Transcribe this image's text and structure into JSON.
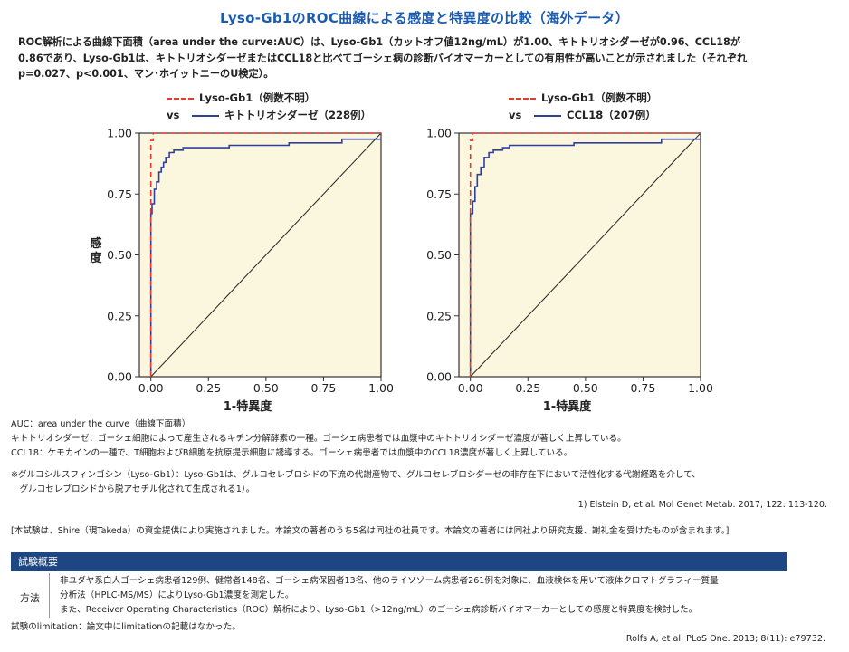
{
  "title": "Lyso-Gb1のROC曲線による感度と特異度の比較（海外データ）",
  "intro_lines": [
    "ROC解析による曲線下面積（area under the curve:AUC）は、Lyso-Gb1（カットオフ値12ng/mL）が1.00、キトトリオシダーゼが0.96、CCL18が",
    "0.86であり、Lyso-Gb1は、キトトリオシダーゼまたはCCL18と比べてゴーシェ病の診断バイオマーカーとしての有用性が高いことが示されました（それぞれ",
    "p=0.027、p<0.001、マン･ホイットニーのU検定）。"
  ],
  "ylabel_chars": [
    "感",
    "度"
  ],
  "xlabel": "1-特異度",
  "vs_label": "vs",
  "chart_data": [
    {
      "type": "line",
      "series": [
        {
          "name": "Lyso-Gb1（例数不明）",
          "color": "#e23b32",
          "style": "dashed",
          "x": [
            0.0,
            0.0,
            0.01,
            0.01,
            1.0
          ],
          "y": [
            0.0,
            0.97,
            0.97,
            1.0,
            1.0
          ]
        },
        {
          "name": "キトトリオシダーゼ（228例）",
          "color": "#2f3fa0",
          "style": "solid",
          "x": [
            0.0,
            0.0,
            0.005,
            0.005,
            0.015,
            0.015,
            0.025,
            0.025,
            0.035,
            0.035,
            0.045,
            0.045,
            0.055,
            0.055,
            0.065,
            0.065,
            0.08,
            0.08,
            0.1,
            0.1,
            0.14,
            0.14,
            0.34,
            0.34,
            0.6,
            0.6,
            0.83,
            0.83,
            1.0
          ],
          "y": [
            0.0,
            0.67,
            0.67,
            0.71,
            0.71,
            0.77,
            0.77,
            0.8,
            0.8,
            0.84,
            0.84,
            0.86,
            0.86,
            0.88,
            0.88,
            0.9,
            0.9,
            0.92,
            0.92,
            0.93,
            0.93,
            0.94,
            0.94,
            0.95,
            0.95,
            0.96,
            0.96,
            0.975,
            0.975
          ]
        }
      ],
      "diagonal": true,
      "xticks": [
        "0.00",
        "0.25",
        "0.50",
        "0.75",
        "1.00"
      ],
      "yticks": [
        "0.00",
        "0.25",
        "0.50",
        "0.75",
        "1.00"
      ],
      "xlim": [
        -0.05,
        1.0
      ],
      "ylim": [
        0,
        1.0
      ]
    },
    {
      "type": "line",
      "series": [
        {
          "name": "Lyso-Gb1（例数不明）",
          "color": "#e23b32",
          "style": "dashed",
          "x": [
            0.0,
            0.0,
            0.01,
            0.01,
            1.0
          ],
          "y": [
            0.0,
            0.97,
            0.97,
            1.0,
            1.0
          ]
        },
        {
          "name": "CCL18（207例）",
          "color": "#2f3fa0",
          "style": "solid",
          "x": [
            0.0,
            0.0,
            0.01,
            0.01,
            0.02,
            0.02,
            0.03,
            0.03,
            0.045,
            0.045,
            0.06,
            0.06,
            0.08,
            0.08,
            0.1,
            0.1,
            0.14,
            0.14,
            0.17,
            0.17,
            0.45,
            0.45,
            0.83,
            0.83,
            1.0
          ],
          "y": [
            0.0,
            0.67,
            0.67,
            0.72,
            0.72,
            0.78,
            0.78,
            0.83,
            0.83,
            0.86,
            0.86,
            0.9,
            0.9,
            0.92,
            0.92,
            0.93,
            0.93,
            0.94,
            0.94,
            0.95,
            0.95,
            0.96,
            0.96,
            0.975,
            0.975
          ]
        }
      ],
      "diagonal": true,
      "xticks": [
        "0.00",
        "0.25",
        "0.50",
        "0.75",
        "1.00"
      ],
      "yticks": [
        "0.00",
        "0.25",
        "0.50",
        "0.75",
        "1.00"
      ],
      "xlim": [
        -0.05,
        1.0
      ],
      "ylim": [
        0,
        1.0
      ]
    }
  ],
  "notes": [
    "AUC：area under the curve（曲線下面積）",
    "キトトリオシダーゼ：ゴーシェ細胞によって産生されるキチン分解酵素の一種。ゴーシェ病患者では血漿中のキトトリオシダーゼ濃度が著しく上昇している。",
    "CCL18：ケモカインの一種で、T細胞およびB細胞を抗原提示細胞に誘導する。ゴーシェ病患者では血漿中のCCL18濃度が著しく上昇している。",
    "",
    "※グルコシルスフィンゴシン（Lyso-Gb1）：Lyso-Gb1は、グルコセレブロシドの下流の代謝産物で、グルコセレブロシダーゼの非存在下において活性化する代謝経路を介して、",
    "　グルコセレブロシドから脱アセチル化されて生成される1）。"
  ],
  "reference1": "1) Elstein D, et al. Mol Genet Metab. 2017; 122: 113-120.",
  "funding": "[本試験は、Shire（現Takeda）の資金提供により実施されました。本論文の著者のうち5名は同社の社員です。本論文の著者には同社より研究支援、謝礼金を受けたものが含まれます。]",
  "study_header": "試験概要",
  "method_label": "方法",
  "method_lines": [
    "非ユダヤ系白人ゴーシェ病患者129例、健常者148名、ゴーシェ病保因者13名、他のライソゾーム病患者261例を対象に、血液検体を用いて液体クロマトグラフィー質量",
    "分析法（HPLC-MS/MS）によりLyso-Gb1濃度を測定した。",
    "また、Receiver Operating Characteristics（ROC）解析により、Lyso-Gb1（>12ng/mL）のゴーシェ病診断バイオマーカーとしての感度と特異度を検討した。"
  ],
  "limitation": "試験のlimitation：論文中にlimitationの記載はなかった。",
  "reference2": "Rolfs A, et al. PLoS One. 2013; 8(11): e79732.",
  "colors": {
    "title": "#1b5bb0",
    "plot_bg": "#fbf7de",
    "header_bar": "#1e4682",
    "red": "#e23b32",
    "blue": "#2f3fa0"
  }
}
